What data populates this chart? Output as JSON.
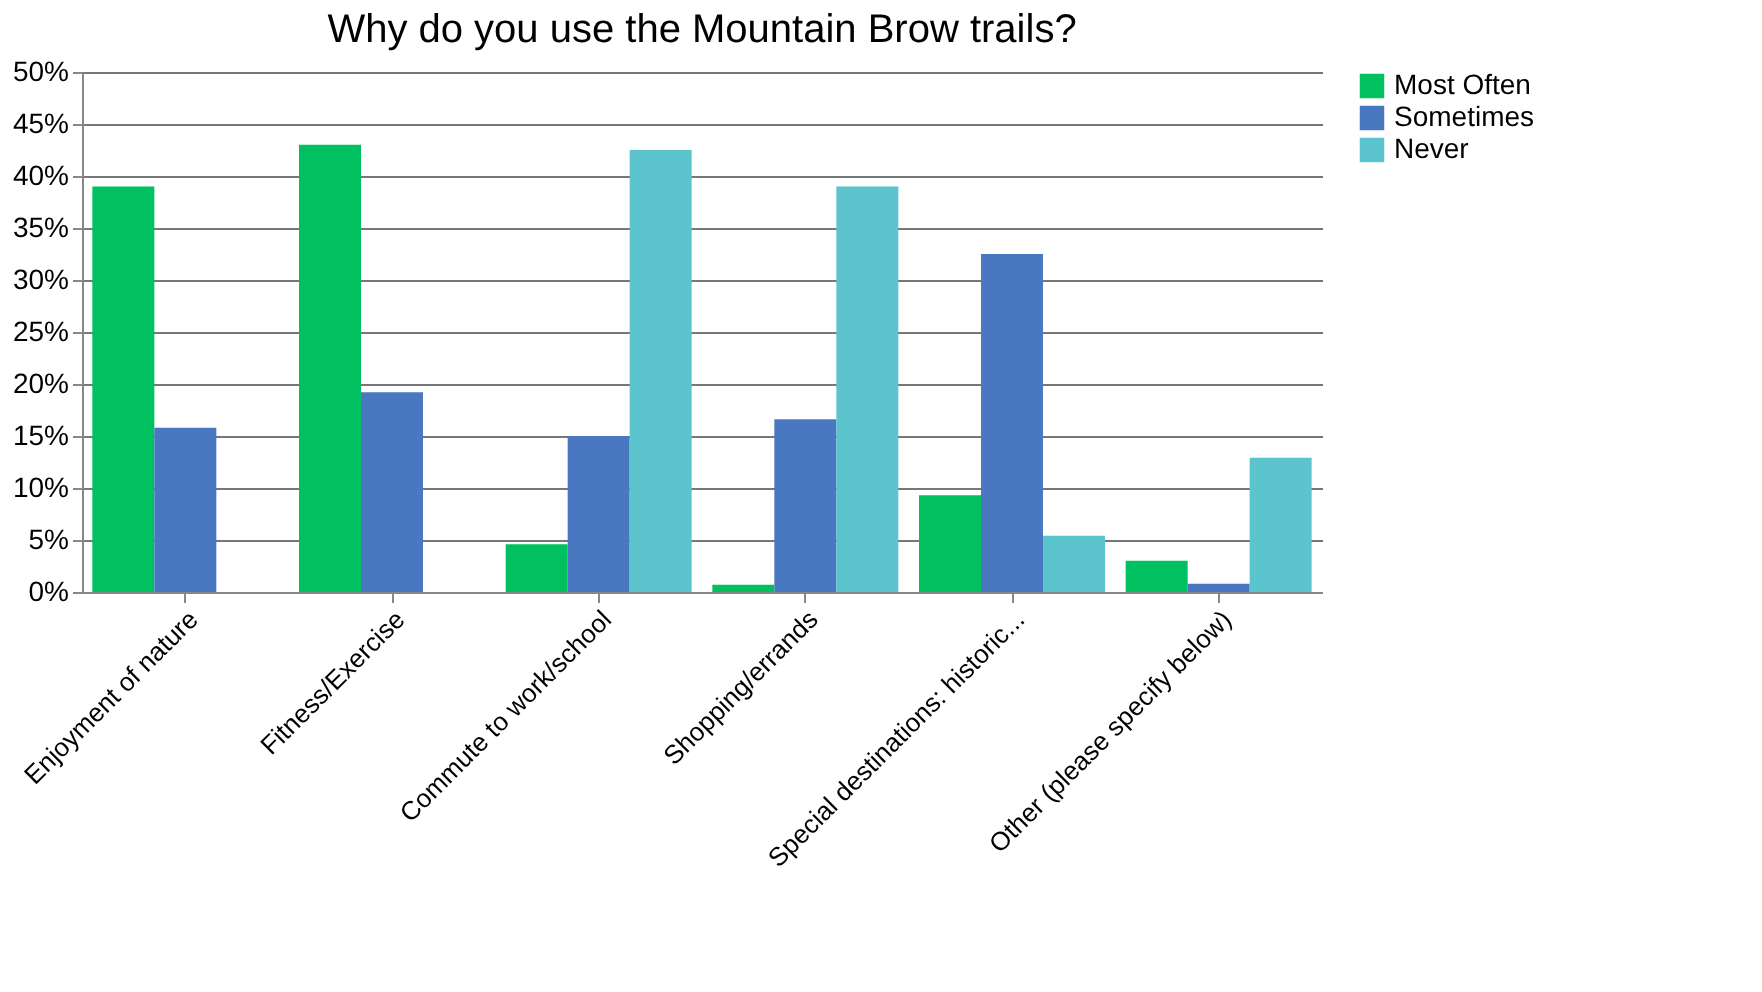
{
  "chart_data": {
    "type": "bar",
    "title": "Why do you use the Mountain Brow trails?",
    "categories": [
      "Enjoyment of nature",
      "Fitness/Exercise",
      "Commute to work/school",
      "Shopping/errands",
      "Special destinations: historic...",
      "Other (please specify below)"
    ],
    "series": [
      {
        "name": "Most Often",
        "color": "#00c060",
        "values": [
          39.0,
          43.0,
          4.6,
          0.7,
          9.3,
          3.0
        ]
      },
      {
        "name": "Sometimes",
        "color": "#4a78c0",
        "values": [
          15.8,
          19.2,
          15.0,
          16.6,
          32.5,
          0.8
        ]
      },
      {
        "name": "Never",
        "color": "#5bc4cc",
        "values": [
          null,
          null,
          42.5,
          39.0,
          5.4,
          12.9
        ]
      }
    ],
    "ylim": [
      0,
      50
    ],
    "yticks": [
      {
        "value": 0,
        "label": "0%"
      },
      {
        "value": 5,
        "label": "5%"
      },
      {
        "value": 10,
        "label": "10%"
      },
      {
        "value": 15,
        "label": "15%"
      },
      {
        "value": 20,
        "label": "20%"
      },
      {
        "value": 25,
        "label": "25%"
      },
      {
        "value": 30,
        "label": "30%"
      },
      {
        "value": 35,
        "label": "35%"
      },
      {
        "value": 40,
        "label": "40%"
      },
      {
        "value": 45,
        "label": "45%"
      },
      {
        "value": 50,
        "label": "50%"
      }
    ],
    "grid": "y",
    "legend": "right"
  }
}
